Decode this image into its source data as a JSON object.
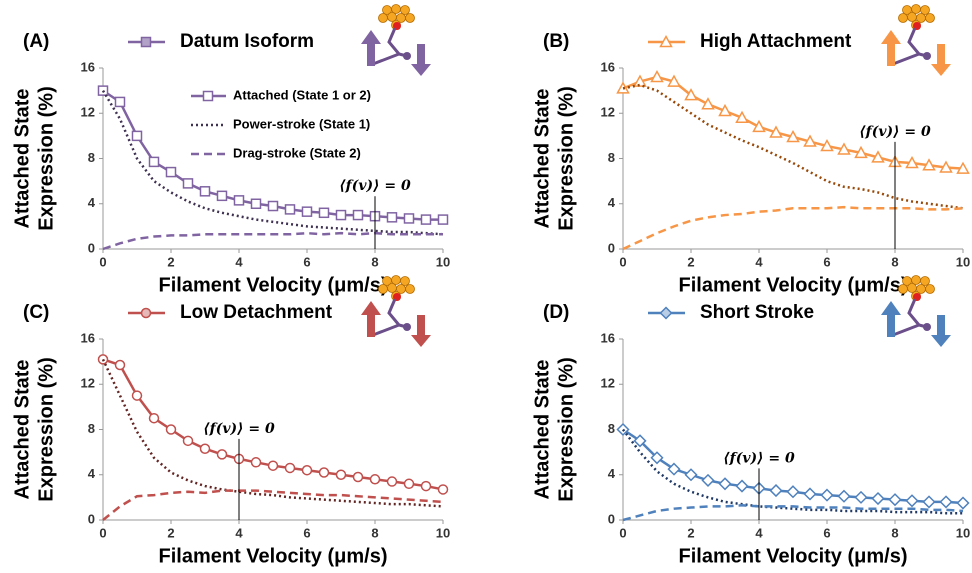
{
  "chart_data": [
    {
      "type": "line",
      "panel_label": "(A)",
      "title": "Datum Isoform",
      "x_label": "Filament Velocity (μm/s)",
      "y_label_lines": [
        "Attached State",
        "Expression (%)"
      ],
      "x": [
        0,
        0.5,
        1,
        1.5,
        2,
        2.5,
        3,
        3.5,
        4,
        4.5,
        5,
        5.5,
        6,
        6.5,
        7,
        7.5,
        8,
        8.5,
        9,
        9.5,
        10
      ],
      "xlim": [
        0,
        10
      ],
      "xticks": [
        0,
        2,
        4,
        6,
        8,
        10
      ],
      "ylim": [
        0,
        16
      ],
      "yticks": [
        0,
        4,
        8,
        12,
        16
      ],
      "legend_fill": "#b3a2c7",
      "annotation": {
        "text": "⟨f(v)⟩ = 0",
        "x": 8
      },
      "series": [
        {
          "name": "Attached (State 1 or 2)",
          "color": "#8064a2",
          "marker": "square",
          "values": [
            14,
            13,
            10,
            7.7,
            6.8,
            5.8,
            5.1,
            4.7,
            4.3,
            4.0,
            3.8,
            3.5,
            3.3,
            3.2,
            3.0,
            3.0,
            2.9,
            2.8,
            2.7,
            2.6,
            2.6
          ]
        },
        {
          "name": "Power-stroke (State 1)",
          "color": "#3f3151",
          "dash": "dot",
          "values": [
            14,
            11.5,
            8,
            6,
            5,
            4.2,
            3.6,
            3.2,
            2.9,
            2.6,
            2.4,
            2.2,
            2.0,
            1.9,
            1.8,
            1.7,
            1.6,
            1.5,
            1.5,
            1.4,
            1.3
          ]
        },
        {
          "name": "Drag-stroke (State 2)",
          "color": "#8064a2",
          "dash": "dash",
          "values": [
            0,
            0.5,
            0.9,
            1.1,
            1.2,
            1.2,
            1.3,
            1.3,
            1.3,
            1.3,
            1.3,
            1.3,
            1.4,
            1.3,
            1.4,
            1.3,
            1.4,
            1.3,
            1.3,
            1.3,
            1.3
          ]
        }
      ]
    },
    {
      "type": "line",
      "panel_label": "(B)",
      "title": "High Attachment",
      "x_label": "Filament Velocity (μm/s)",
      "y_label_lines": [
        "Attached State",
        "Expression (%)"
      ],
      "x": [
        0,
        0.5,
        1,
        1.5,
        2,
        2.5,
        3,
        3.5,
        4,
        4.5,
        5,
        5.5,
        6,
        6.5,
        7,
        7.5,
        8,
        8.5,
        9,
        9.5,
        10
      ],
      "xlim": [
        0,
        10
      ],
      "xticks": [
        0,
        2,
        4,
        6,
        8,
        10
      ],
      "ylim": [
        0,
        16
      ],
      "yticks": [
        0,
        4,
        8,
        12,
        16
      ],
      "legend_fill": "#ffffff",
      "annotation": {
        "text": "⟨f(v)⟩ = 0",
        "x": 8
      },
      "series": [
        {
          "color": "#f79646",
          "marker": "triangle",
          "values": [
            14.2,
            14.8,
            15.2,
            14.8,
            13.6,
            12.8,
            12.2,
            11.6,
            10.8,
            10.3,
            9.9,
            9.5,
            9.1,
            8.8,
            8.5,
            8.1,
            7.7,
            7.6,
            7.4,
            7.2,
            7.1
          ]
        },
        {
          "color": "#984807",
          "dash": "dot",
          "values": [
            14.2,
            14.5,
            14,
            13,
            12,
            11,
            10.3,
            9.6,
            9,
            8.3,
            7.6,
            6.8,
            6.0,
            5.5,
            5.3,
            5.0,
            4.5,
            4.2,
            4.0,
            3.8,
            3.6
          ]
        },
        {
          "color": "#f79646",
          "dash": "dash",
          "values": [
            0,
            0.7,
            1.4,
            2.0,
            2.5,
            2.8,
            3.0,
            3.1,
            3.3,
            3.4,
            3.6,
            3.6,
            3.6,
            3.7,
            3.6,
            3.6,
            3.6,
            3.6,
            3.5,
            3.5,
            3.6
          ]
        }
      ]
    },
    {
      "type": "line",
      "panel_label": "(C)",
      "title": "Low Detachment",
      "x_label": "Filament Velocity (μm/s)",
      "y_label_lines": [
        "Attached State",
        "Expression (%)"
      ],
      "x": [
        0,
        0.5,
        1,
        1.5,
        2,
        2.5,
        3,
        3.5,
        4,
        4.5,
        5,
        5.5,
        6,
        6.5,
        7,
        7.5,
        8,
        8.5,
        9,
        9.5,
        10
      ],
      "xlim": [
        0,
        10
      ],
      "xticks": [
        0,
        2,
        4,
        6,
        8,
        10
      ],
      "ylim": [
        0,
        16
      ],
      "yticks": [
        0,
        4,
        8,
        12,
        16
      ],
      "legend_fill": "#e6b9b8",
      "annotation": {
        "text": "⟨f(v)⟩ = 0",
        "x": 4
      },
      "series": [
        {
          "color": "#c0504d",
          "marker": "circle",
          "values": [
            14.2,
            13.7,
            11,
            9,
            8,
            7,
            6.3,
            5.8,
            5.4,
            5.1,
            4.8,
            4.6,
            4.4,
            4.2,
            4.0,
            3.8,
            3.6,
            3.4,
            3.2,
            3.0,
            2.7
          ]
        },
        {
          "color": "#632523",
          "dash": "dot",
          "values": [
            14.2,
            11,
            7.8,
            5.5,
            4.2,
            3.5,
            3.0,
            2.7,
            2.5,
            2.3,
            2.2,
            2.0,
            1.9,
            1.8,
            1.7,
            1.6,
            1.5,
            1.4,
            1.4,
            1.3,
            1.2
          ]
        },
        {
          "color": "#c0504d",
          "dash": "dash",
          "values": [
            0,
            1.2,
            2.1,
            2.2,
            2.4,
            2.5,
            2.4,
            2.6,
            2.6,
            2.6,
            2.5,
            2.4,
            2.3,
            2.2,
            2.2,
            2.1,
            2.0,
            1.9,
            1.8,
            1.7,
            1.6
          ]
        }
      ]
    },
    {
      "type": "line",
      "panel_label": "(D)",
      "title": "Short Stroke",
      "x_label": "Filament Velocity (μm/s)",
      "y_label_lines": [
        "Attached State",
        "Expression (%)"
      ],
      "x": [
        0,
        0.5,
        1,
        1.5,
        2,
        2.5,
        3,
        3.5,
        4,
        4.5,
        5,
        5.5,
        6,
        6.5,
        7,
        7.5,
        8,
        8.5,
        9,
        9.5,
        10
      ],
      "xlim": [
        0,
        10
      ],
      "xticks": [
        0,
        2,
        4,
        6,
        8,
        10
      ],
      "ylim": [
        0,
        16
      ],
      "yticks": [
        0,
        4,
        8,
        12,
        16
      ],
      "legend_fill": "#b9cde5",
      "annotation": {
        "text": "⟨f(v)⟩ = 0",
        "x": 4
      },
      "series": [
        {
          "color": "#4f81bd",
          "marker": "diamond",
          "values": [
            8,
            7,
            5.5,
            4.5,
            4,
            3.5,
            3.2,
            3.0,
            2.8,
            2.6,
            2.5,
            2.3,
            2.2,
            2.1,
            2.0,
            1.9,
            1.8,
            1.7,
            1.6,
            1.6,
            1.5
          ]
        },
        {
          "color": "#1f3864",
          "dash": "dot",
          "values": [
            8,
            6,
            4.3,
            3.2,
            2.5,
            2.0,
            1.6,
            1.4,
            1.2,
            1.1,
            1.0,
            0.9,
            0.9,
            0.8,
            0.8,
            0.8,
            0.7,
            0.7,
            0.7,
            0.6,
            0.6
          ]
        },
        {
          "color": "#4f81bd",
          "dash": "dash",
          "values": [
            0,
            0.4,
            0.8,
            1.0,
            1.1,
            1.2,
            1.2,
            1.3,
            1.2,
            1.2,
            1.2,
            1.1,
            1.1,
            1.1,
            1.0,
            1.0,
            1.0,
            1.0,
            0.9,
            0.9,
            0.8
          ]
        }
      ]
    }
  ]
}
